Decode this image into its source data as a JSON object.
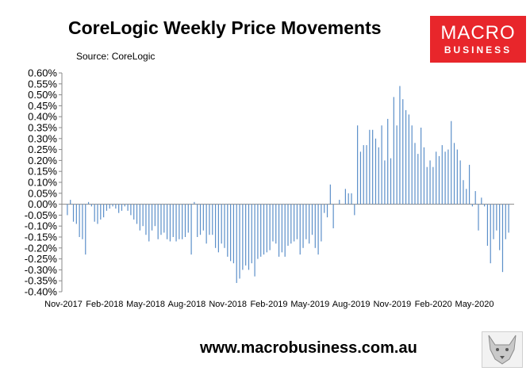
{
  "title": "CoreLogic Weekly Price Movements",
  "source": "Source: CoreLogic",
  "logo": {
    "main": "MACRO",
    "sub": "BUSINESS"
  },
  "footer": "www.macrobusiness.com.au",
  "colors": {
    "bar": "#5b8fc9",
    "axis": "#888888",
    "logo_bg": "#e8262b"
  },
  "chart_data": {
    "type": "bar",
    "title": "CoreLogic Weekly Price Movements",
    "subtitle": "Source: CoreLogic",
    "ylim": [
      -0.4,
      0.6
    ],
    "y_ticks": [
      "0.60%",
      "0.55%",
      "0.50%",
      "0.45%",
      "0.40%",
      "0.35%",
      "0.30%",
      "0.25%",
      "0.20%",
      "0.15%",
      "0.10%",
      "0.05%",
      "0.00%",
      "-0.05%",
      "-0.10%",
      "-0.15%",
      "-0.20%",
      "-0.25%",
      "-0.30%",
      "-0.35%",
      "-0.40%"
    ],
    "x_tick_labels": [
      "Nov-2017",
      "Feb-2018",
      "May-2018",
      "Aug-2018",
      "Nov-2018",
      "Feb-2019",
      "May-2019",
      "Aug-2019",
      "Nov-2019",
      "Feb-2020",
      "May-2020"
    ],
    "grid": false,
    "legend": "none",
    "series": [
      {
        "values": [
          -0.05,
          0.02,
          -0.08,
          -0.09,
          -0.15,
          -0.16,
          -0.23,
          0.01,
          -0.01,
          -0.08,
          -0.09,
          -0.07,
          -0.06,
          -0.03,
          -0.02,
          -0.01,
          -0.02,
          -0.04,
          -0.03,
          -0.01,
          -0.03,
          -0.05,
          -0.07,
          -0.09,
          -0.12,
          -0.1,
          -0.14,
          -0.17,
          -0.12,
          -0.1,
          -0.16,
          -0.14,
          -0.13,
          -0.16,
          -0.17,
          -0.15,
          -0.17,
          -0.16,
          -0.16,
          -0.15,
          -0.13,
          -0.23,
          0.01,
          -0.15,
          -0.14,
          -0.12,
          -0.18,
          -0.14,
          -0.14,
          -0.2,
          -0.22,
          -0.18,
          -0.2,
          -0.24,
          -0.26,
          -0.27,
          -0.36,
          -0.34,
          -0.3,
          -0.28,
          -0.3,
          -0.27,
          -0.33,
          -0.25,
          -0.24,
          -0.23,
          -0.22,
          -0.21,
          -0.17,
          -0.18,
          -0.24,
          -0.22,
          -0.24,
          -0.19,
          -0.18,
          -0.17,
          -0.16,
          -0.23,
          -0.2,
          -0.16,
          -0.18,
          -0.14,
          -0.2,
          -0.23,
          -0.17,
          -0.04,
          -0.06,
          0.09,
          -0.11,
          0.0,
          0.02,
          0.0,
          0.07,
          0.05,
          0.05,
          -0.05,
          0.36,
          0.24,
          0.27,
          0.27,
          0.34,
          0.34,
          0.3,
          0.26,
          0.36,
          0.2,
          0.39,
          0.21,
          0.49,
          0.36,
          0.54,
          0.48,
          0.43,
          0.41,
          0.36,
          0.28,
          0.23,
          0.35,
          0.26,
          0.17,
          0.2,
          0.17,
          0.24,
          0.22,
          0.27,
          0.24,
          0.25,
          0.38,
          0.28,
          0.25,
          0.2,
          0.11,
          0.07,
          0.18,
          -0.01,
          0.06,
          -0.12,
          0.03,
          -0.01,
          -0.19,
          -0.27,
          -0.16,
          -0.12,
          -0.21,
          -0.31,
          -0.16,
          -0.13
        ]
      }
    ]
  }
}
